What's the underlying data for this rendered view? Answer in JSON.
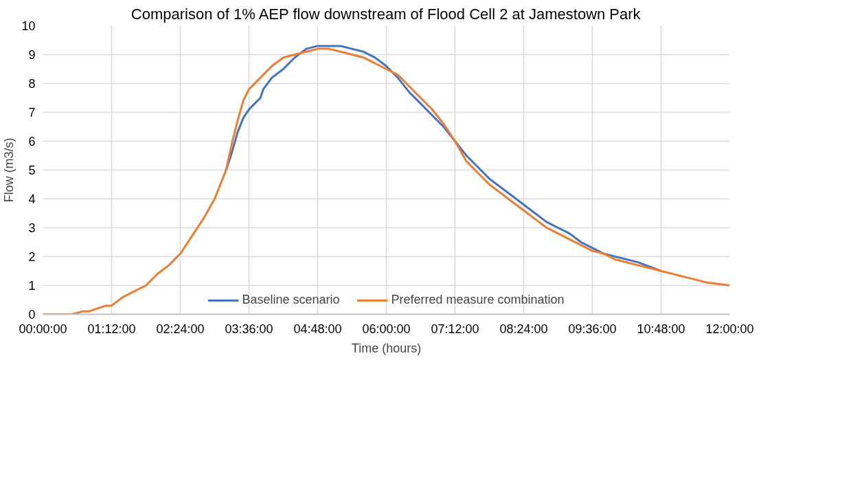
{
  "chart_data": {
    "type": "line",
    "title": "Comparison of 1% AEP flow downstream of Flood Cell 2 at Jamestown Park",
    "xlabel": "Time (hours)",
    "ylabel": "Flow (m3/s)",
    "xlim": [
      0,
      12
    ],
    "ylim": [
      0,
      10
    ],
    "xticks": [
      {
        "value": 0,
        "label": "00:00:00"
      },
      {
        "value": 1.2,
        "label": "01:12:00"
      },
      {
        "value": 2.4,
        "label": "02:24:00"
      },
      {
        "value": 3.6,
        "label": "03:36:00"
      },
      {
        "value": 4.8,
        "label": "04:48:00"
      },
      {
        "value": 6,
        "label": "06:00:00"
      },
      {
        "value": 7.2,
        "label": "07:12:00"
      },
      {
        "value": 8.4,
        "label": "08:24:00"
      },
      {
        "value": 9.6,
        "label": "09:36:00"
      },
      {
        "value": 10.8,
        "label": "10:48:00"
      },
      {
        "value": 12,
        "label": "12:00:00"
      }
    ],
    "yticks": [
      0,
      1,
      2,
      3,
      4,
      5,
      6,
      7,
      8,
      9,
      10
    ],
    "grid": true,
    "legend": "bottom",
    "marker": "none",
    "line_style": "solid",
    "series": [
      {
        "name": "Baseline scenario",
        "color": "#4472c4",
        "x": [
          3.2,
          3.3,
          3.4,
          3.5,
          3.6,
          3.7,
          3.8,
          3.85,
          4.0,
          4.2,
          4.4,
          4.6,
          4.8,
          5.0,
          5.2,
          5.4,
          5.6,
          5.8,
          6.0,
          6.2,
          6.4,
          6.6,
          6.8,
          7.0,
          7.2,
          7.4,
          7.6,
          7.8,
          8.0,
          8.2,
          8.4,
          8.6,
          8.8,
          9.0,
          9.2,
          9.4,
          9.6,
          9.8,
          10.0,
          10.4,
          10.8
        ],
        "values": [
          5.0,
          5.6,
          6.3,
          6.8,
          7.1,
          7.3,
          7.5,
          7.8,
          8.2,
          8.5,
          8.9,
          9.2,
          9.3,
          9.3,
          9.3,
          9.2,
          9.1,
          8.9,
          8.6,
          8.2,
          7.7,
          7.3,
          6.9,
          6.5,
          6.0,
          5.5,
          5.1,
          4.7,
          4.4,
          4.1,
          3.8,
          3.5,
          3.2,
          3.0,
          2.8,
          2.5,
          2.3,
          2.1,
          2.0,
          1.8,
          1.5
        ]
      },
      {
        "name": "Preferred measure combination",
        "color": "#ed7d31",
        "x": [
          0,
          0.5,
          0.7,
          0.8,
          0.95,
          1.1,
          1.2,
          1.4,
          1.6,
          1.8,
          2.0,
          2.2,
          2.4,
          2.6,
          2.8,
          3.0,
          3.2,
          3.3,
          3.4,
          3.5,
          3.6,
          3.8,
          4.0,
          4.2,
          4.4,
          4.6,
          4.8,
          5.0,
          5.2,
          5.4,
          5.6,
          5.8,
          6.0,
          6.2,
          6.4,
          6.6,
          6.8,
          7.0,
          7.2,
          7.4,
          7.6,
          7.8,
          8.0,
          8.2,
          8.4,
          8.6,
          8.8,
          9.0,
          9.2,
          9.4,
          9.6,
          9.8,
          10.0,
          10.4,
          10.8,
          11.2,
          11.6,
          12
        ],
        "values": [
          0.0,
          0.0,
          0.1,
          0.1,
          0.2,
          0.3,
          0.3,
          0.6,
          0.8,
          1.0,
          1.4,
          1.7,
          2.1,
          2.7,
          3.3,
          4.0,
          5.0,
          5.9,
          6.7,
          7.4,
          7.8,
          8.2,
          8.6,
          8.9,
          9.0,
          9.1,
          9.2,
          9.2,
          9.1,
          9.0,
          8.9,
          8.7,
          8.5,
          8.3,
          7.9,
          7.5,
          7.1,
          6.6,
          6.0,
          5.3,
          4.9,
          4.5,
          4.2,
          3.9,
          3.6,
          3.3,
          3.0,
          2.8,
          2.6,
          2.4,
          2.2,
          2.1,
          1.9,
          1.7,
          1.5,
          1.3,
          1.1,
          1.0
        ]
      }
    ]
  }
}
